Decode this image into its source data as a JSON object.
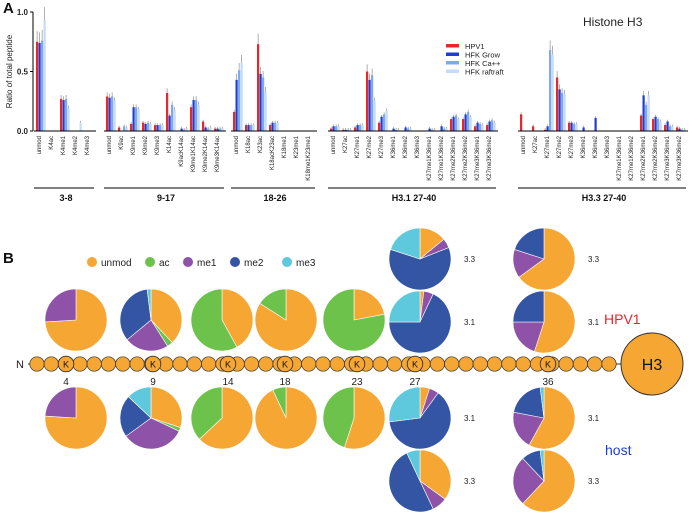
{
  "colors": {
    "unmod": "#f6a632",
    "ac": "#6cc24a",
    "me1": "#8e52a8",
    "me2": "#3455a4",
    "me3": "#5ec8dc",
    "hpv1": "#e8262b",
    "grow": "#1d3fcf",
    "ca": "#7da9f0",
    "raftraft": "#c5dcf7",
    "residue": "#f6a632",
    "hpv1_text": "#e8262b",
    "host_text": "#1d3fcf"
  },
  "panel_a": {
    "label": "A",
    "title": "Histone H3",
    "ylabel": "Ratio of total peptide",
    "ylim": [
      0,
      1.0
    ],
    "yticks": [
      {
        "v": 0.0,
        "label": "0.0"
      },
      {
        "v": 0.5,
        "label": "0.5"
      },
      {
        "v": 1.0,
        "label": "1.0"
      }
    ],
    "legend": [
      "HPV1",
      "HFK Grow",
      "HFK Ca++",
      "HFK raftraft"
    ]
  },
  "panel_b": {
    "label": "B",
    "legend": [
      "unmod",
      "ac",
      "me1",
      "me2",
      "me3"
    ],
    "n_terminus": "N",
    "residue_letter": "K",
    "positions": [
      "4",
      "9",
      "14",
      "18",
      "23",
      "27",
      "36"
    ],
    "h3_label": "H3",
    "hpv1_label": "HPV1",
    "host_label": "host",
    "variant_labels": {
      "v31": "3.1",
      "v33": "3.3"
    }
  },
  "chart_data": [
    {
      "type": "bar",
      "title": "Histone H3",
      "ylabel": "Ratio of total peptide",
      "ylim": [
        0,
        1.0
      ],
      "series_names": [
        "HPV1",
        "HFK Grow",
        "HFK Ca++",
        "HFK raftraft"
      ],
      "groups": [
        {
          "name": "3-8",
          "categories": [
            {
              "label": "unmod",
              "values": [
                0.75,
                0.74,
                0.76,
                0.93
              ]
            },
            {
              "label": "K4ac",
              "values": [
                0.0,
                0.0,
                0.0,
                0.0
              ]
            },
            {
              "label": "K4me1",
              "values": [
                0.27,
                0.26,
                0.27,
                0.19
              ]
            },
            {
              "label": "K4me2",
              "values": [
                0.0,
                0.0,
                0.0,
                0.07
              ]
            },
            {
              "label": "K4me3",
              "values": [
                0.0,
                0.0,
                0.0,
                0.0
              ]
            }
          ]
        },
        {
          "name": "9-17",
          "categories": [
            {
              "label": "unmod",
              "values": [
                0.29,
                0.28,
                0.29,
                0.25
              ]
            },
            {
              "label": "K9ac",
              "values": [
                0.03,
                0.0,
                0.04,
                0.03
              ]
            },
            {
              "label": "K9me1",
              "values": [
                0.06,
                0.2,
                0.2,
                0.18
              ]
            },
            {
              "label": "K9me2",
              "values": [
                0.07,
                0.06,
                0.07,
                0.06
              ]
            },
            {
              "label": "K9me3",
              "values": [
                0.05,
                0.05,
                0.05,
                0.05
              ]
            },
            {
              "label": "K14ac",
              "values": [
                0.32,
                0.13,
                0.22,
                0.18
              ]
            },
            {
              "label": "K9acK14ac",
              "values": [
                0.0,
                0.02,
                0.01,
                0.02
              ]
            },
            {
              "label": "K9me1K14ac",
              "values": [
                0.2,
                0.26,
                0.26,
                0.22
              ]
            },
            {
              "label": "K9me2K14ac",
              "values": [
                0.08,
                0.03,
                0.02,
                0.03
              ]
            },
            {
              "label": "K9me3K14ac",
              "values": [
                0.02,
                0.02,
                0.02,
                0.02
              ]
            }
          ]
        },
        {
          "name": "18-26",
          "categories": [
            {
              "label": "unmod",
              "values": [
                0.16,
                0.43,
                0.51,
                0.57
              ]
            },
            {
              "label": "K18ac",
              "values": [
                0.05,
                0.05,
                0.05,
                0.05
              ]
            },
            {
              "label": "K23ac",
              "values": [
                0.73,
                0.48,
                0.45,
                0.33
              ]
            },
            {
              "label": "K18acK23ac",
              "values": [
                0.05,
                0.07,
                0.07,
                0.07
              ]
            },
            {
              "label": "K18me1",
              "values": [
                0.0,
                0.0,
                0.0,
                0.0
              ]
            },
            {
              "label": "K23me1",
              "values": [
                0.0,
                0.0,
                0.0,
                0.0
              ]
            },
            {
              "label": "K18me1K23me1",
              "values": [
                0.0,
                0.0,
                0.0,
                0.0
              ]
            }
          ]
        },
        {
          "name": "H3.1 27-40",
          "categories": [
            {
              "label": "unmod",
              "values": [
                0.02,
                0.04,
                0.04,
                0.04
              ]
            },
            {
              "label": "K27ac",
              "values": [
                0.01,
                0.01,
                0.01,
                0.01
              ]
            },
            {
              "label": "K27me1",
              "values": [
                0.03,
                0.05,
                0.05,
                0.05
              ]
            },
            {
              "label": "K27me2",
              "values": [
                0.5,
                0.43,
                0.47,
                0.25
              ]
            },
            {
              "label": "K27me3",
              "values": [
                0.07,
                0.12,
                0.14,
                0.17
              ]
            },
            {
              "label": "K36me1",
              "values": [
                0.0,
                0.02,
                0.01,
                0.01
              ]
            },
            {
              "label": "K36me2",
              "values": [
                0.0,
                0.03,
                0.02,
                0.02
              ]
            },
            {
              "label": "K36me3",
              "values": [
                0.0,
                0.0,
                0.0,
                0.0
              ]
            },
            {
              "label": "K27me1K36me1",
              "values": [
                0.0,
                0.02,
                0.01,
                0.01
              ]
            },
            {
              "label": "K27me1K36me2",
              "values": [
                0.0,
                0.04,
                0.02,
                0.02
              ]
            },
            {
              "label": "K27me2K36me1",
              "values": [
                0.1,
                0.12,
                0.13,
                0.1
              ]
            },
            {
              "label": "K27me2K36me2",
              "values": [
                0.1,
                0.14,
                0.16,
                0.12
              ]
            },
            {
              "label": "K27me3K36me1",
              "values": [
                0.04,
                0.07,
                0.06,
                0.05
              ]
            },
            {
              "label": "K27me3K36me2",
              "values": [
                0.05,
                0.08,
                0.09,
                0.07
              ]
            }
          ]
        },
        {
          "name": "H3.3 27-40",
          "categories": [
            {
              "label": "unmod",
              "values": [
                0.14,
                0.0,
                0.0,
                0.0
              ]
            },
            {
              "label": "K27ac",
              "values": [
                0.04,
                0.0,
                0.0,
                0.0
              ]
            },
            {
              "label": "K27me1",
              "values": [
                0.01,
                0.04,
                0.68,
                0.64
              ]
            },
            {
              "label": "K27me2",
              "values": [
                0.45,
                0.35,
                0.32,
                0.31
              ]
            },
            {
              "label": "K27me3",
              "values": [
                0.07,
                0.07,
                0.06,
                0.06
              ]
            },
            {
              "label": "K36me1",
              "values": [
                0.0,
                0.03,
                0.0,
                0.0
              ]
            },
            {
              "label": "K36me2",
              "values": [
                0.0,
                0.11,
                0.0,
                0.0
              ]
            },
            {
              "label": "K36me3",
              "values": [
                0.0,
                0.0,
                0.0,
                0.0
              ]
            },
            {
              "label": "K27me1K36me1",
              "values": [
                0.0,
                0.0,
                0.0,
                0.0
              ]
            },
            {
              "label": "K27me1K36me2",
              "values": [
                0.0,
                0.0,
                0.0,
                0.0
              ]
            },
            {
              "label": "K27me2K36me1",
              "values": [
                0.13,
                0.3,
                0.22,
                0.3
              ]
            },
            {
              "label": "K27me2K36me2",
              "values": [
                0.1,
                0.12,
                0.1,
                0.08
              ]
            },
            {
              "label": "K27me3K36me1",
              "values": [
                0.05,
                0.08,
                0.04,
                0.04
              ]
            },
            {
              "label": "K27me3K36me2",
              "values": [
                0.03,
                0.02,
                0.01,
                0.01
              ]
            }
          ]
        }
      ]
    },
    {
      "type": "pie",
      "title": "Histone H3 modification distribution",
      "legend": [
        "unmod",
        "ac",
        "me1",
        "me2",
        "me3"
      ],
      "pies": [
        {
          "site": "K4",
          "condition": "HPV1",
          "values": [
            74,
            0,
            26,
            0,
            0
          ]
        },
        {
          "site": "K9",
          "condition": "HPV1",
          "values": [
            38,
            3,
            23,
            34,
            2
          ]
        },
        {
          "site": "K14",
          "condition": "HPV1",
          "values": [
            42,
            58,
            0,
            0,
            0
          ]
        },
        {
          "site": "K18",
          "condition": "HPV1",
          "values": [
            84,
            16,
            0,
            0,
            0
          ]
        },
        {
          "site": "K23",
          "condition": "HPV1",
          "values": [
            22,
            78,
            0,
            0,
            0
          ]
        },
        {
          "site": "K27",
          "variant": "3.1",
          "condition": "HPV1",
          "values": [
            2,
            0,
            5,
            68,
            25
          ]
        },
        {
          "site": "K27",
          "variant": "3.3",
          "condition": "HPV1",
          "values": [
            14,
            0,
            5,
            61,
            20
          ]
        },
        {
          "site": "K36",
          "variant": "3.1",
          "condition": "HPV1",
          "values": [
            55,
            0,
            20,
            25,
            0
          ]
        },
        {
          "site": "K36",
          "variant": "3.3",
          "condition": "HPV1",
          "values": [
            65,
            0,
            15,
            20,
            0
          ]
        },
        {
          "site": "K4",
          "condition": "host",
          "values": [
            76,
            0,
            24,
            0,
            0
          ]
        },
        {
          "site": "K9",
          "condition": "host",
          "values": [
            30,
            2,
            33,
            22,
            13
          ]
        },
        {
          "site": "K14",
          "condition": "host",
          "values": [
            63,
            37,
            0,
            0,
            0
          ]
        },
        {
          "site": "K18",
          "condition": "host",
          "values": [
            93,
            7,
            0,
            0,
            0
          ]
        },
        {
          "site": "K23",
          "condition": "host",
          "values": [
            55,
            45,
            0,
            0,
            0
          ]
        },
        {
          "site": "K27",
          "variant": "3.1",
          "condition": "host",
          "values": [
            5,
            0,
            5,
            63,
            27
          ]
        },
        {
          "site": "K27",
          "variant": "3.3",
          "condition": "host",
          "values": [
            35,
            0,
            8,
            50,
            7
          ]
        },
        {
          "site": "K36",
          "variant": "3.1",
          "condition": "host",
          "values": [
            58,
            0,
            20,
            20,
            2
          ]
        },
        {
          "site": "K36",
          "variant": "3.3",
          "condition": "host",
          "values": [
            62,
            0,
            26,
            10,
            2
          ]
        }
      ]
    }
  ]
}
